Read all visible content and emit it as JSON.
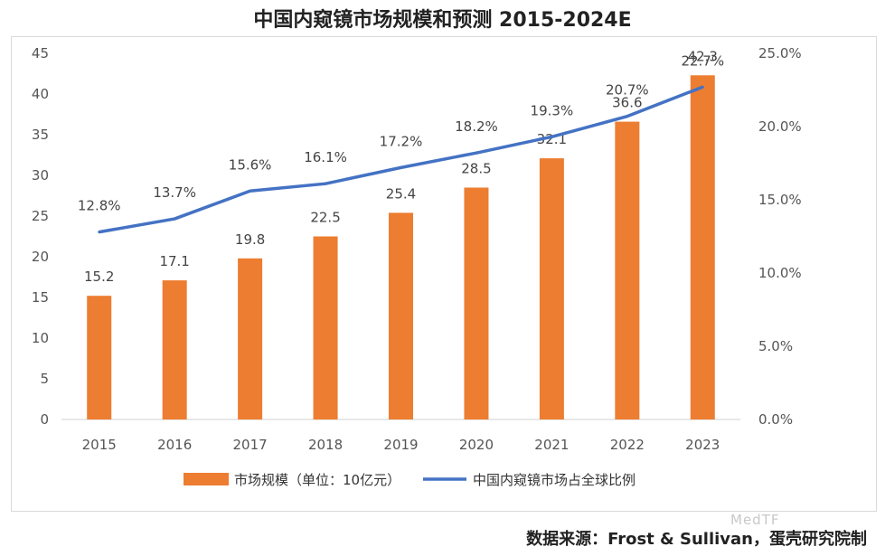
{
  "title": "中国内窥镜市场规模和预测 2015-2024E",
  "footer": "数据来源：Frost & Sullivan，蛋壳研究院制",
  "watermark": "MedTF",
  "chart_data": {
    "type": "bar",
    "title": "中国内窥镜市场规模和预测 2015-2024E",
    "categories": [
      "2015",
      "2016",
      "2017",
      "2018",
      "2019",
      "2020",
      "2021",
      "2022",
      "2023"
    ],
    "series": [
      {
        "name": "市场规模（单位：10亿元）",
        "type": "bar",
        "axis": "left",
        "values": [
          15.2,
          17.1,
          19.8,
          22.5,
          25.4,
          28.5,
          32.1,
          36.6,
          42.3
        ],
        "labels": [
          "15.2",
          "17.1",
          "19.8",
          "22.5",
          "25.4",
          "28.5",
          "32.1",
          "36.6",
          "42.3"
        ]
      },
      {
        "name": "中国内窥镜市场占全球比例",
        "type": "line",
        "axis": "right",
        "values": [
          12.8,
          13.7,
          15.6,
          16.1,
          17.2,
          18.2,
          19.3,
          20.7,
          22.7
        ],
        "labels": [
          "12.8%",
          "13.7%",
          "15.6%",
          "16.1%",
          "17.2%",
          "18.2%",
          "19.3%",
          "20.7%",
          "22.7%"
        ]
      }
    ],
    "y_left": {
      "min": 0,
      "max": 45,
      "ticks": [
        "0",
        "5",
        "10",
        "15",
        "20",
        "25",
        "30",
        "35",
        "40",
        "45"
      ]
    },
    "y_right": {
      "min": 0,
      "max": 25,
      "ticks": [
        "0.0%",
        "5.0%",
        "10.0%",
        "15.0%",
        "20.0%",
        "25.0%"
      ]
    },
    "grid": false,
    "legend": "bottom",
    "colors": {
      "bar": "#ED7D31",
      "line": "#4472C4"
    }
  }
}
